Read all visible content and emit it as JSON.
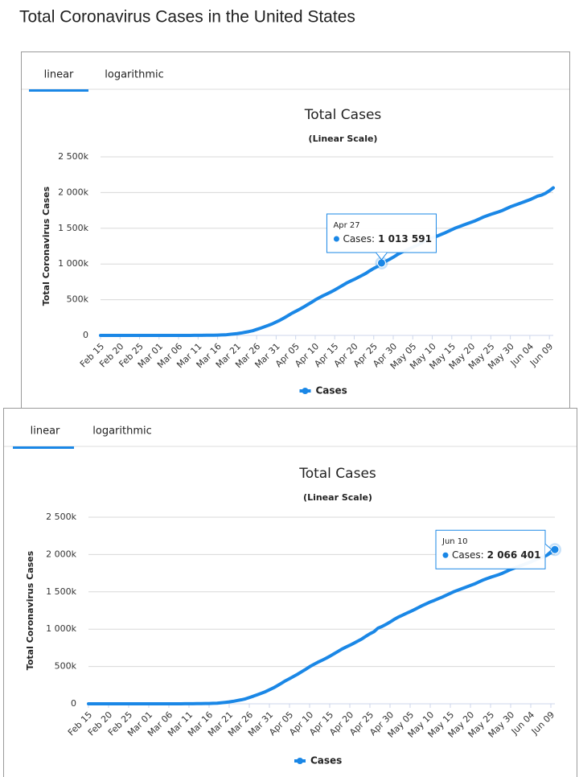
{
  "page_title": "Total Coronavirus Cases in the United States",
  "panels": [
    {
      "tabs": [
        "linear",
        "logarithmic"
      ]
    },
    {
      "tabs": [
        "linear",
        "logarithmic"
      ]
    }
  ],
  "chart_data": [
    {
      "type": "line",
      "title": "Total Cases",
      "subtitle": "(Linear Scale)",
      "y_label": "Total Coronavirus Cases",
      "categories": [
        "Feb 15",
        null,
        null,
        null,
        null,
        "Feb 20",
        null,
        null,
        null,
        null,
        "Feb 25",
        null,
        null,
        null,
        null,
        "Mar 01",
        null,
        null,
        null,
        null,
        "Mar 06",
        null,
        null,
        null,
        null,
        "Mar 11",
        null,
        null,
        null,
        null,
        "Mar 16",
        null,
        null,
        null,
        null,
        "Mar 21",
        null,
        null,
        null,
        null,
        "Mar 26",
        null,
        null,
        null,
        null,
        "Mar 31",
        null,
        null,
        null,
        null,
        "Apr 05",
        null,
        null,
        null,
        null,
        "Apr 10",
        null,
        null,
        null,
        null,
        "Apr 15",
        null,
        null,
        null,
        null,
        "Apr 20",
        null,
        null,
        null,
        null,
        "Apr 25",
        null,
        null,
        null,
        null,
        "Apr 30",
        null,
        null,
        null,
        null,
        "May 05",
        null,
        null,
        null,
        null,
        "May 10",
        null,
        null,
        null,
        null,
        "May 15",
        null,
        null,
        null,
        null,
        "May 20",
        null,
        null,
        null,
        null,
        "May 25",
        null,
        null,
        null,
        null,
        "May 30",
        null,
        null,
        null,
        null,
        "Jun 04",
        null,
        null,
        null,
        null,
        "Jun 09",
        null
      ],
      "series": [
        {
          "name": "Cases",
          "color": "#1a87e6",
          "values": [
            15,
            15,
            15,
            15,
            15,
            15,
            15,
            15,
            15,
            15,
            15,
            15,
            16,
            16,
            24,
            30,
            53,
            80,
            120,
            175,
            250,
            350,
            450,
            580,
            960,
            1300,
            1700,
            2200,
            2900,
            3500,
            4600,
            6400,
            7800,
            13700,
            19100,
            25500,
            33300,
            43800,
            53700,
            65700,
            83800,
            101700,
            121500,
            140900,
            161800,
            188200,
            213400,
            243500,
            275600,
            308800,
            337100,
            366600,
            396200,
            429000,
            461400,
            496500,
            526400,
            555300,
            580600,
            607700,
            636300,
            667800,
            699700,
            732200,
            759000,
            784300,
            811900,
            840300,
            869200,
            905400,
            938100,
            965800,
            1013591,
            1035800,
            1064200,
            1095000,
            1130000,
            1160000,
            1185000,
            1210000,
            1235000,
            1260000,
            1288000,
            1315000,
            1340000,
            1365000,
            1385000,
            1408000,
            1430000,
            1455000,
            1480000,
            1505000,
            1525000,
            1545000,
            1565000,
            1585000,
            1605000,
            1630000,
            1655000,
            1675000,
            1695000,
            1712000,
            1730000,
            1750000,
            1775000,
            1800000,
            1820000,
            1840000,
            1860000,
            1880000,
            1900000,
            1925000,
            1950000,
            1965000,
            1990000,
            2025000,
            2066401
          ]
        }
      ],
      "ylim": [
        0,
        2500000
      ],
      "yticks": [
        0,
        {
          "value": 500000,
          "label": "500k"
        },
        {
          "value": 1000000,
          "label": "1 000k"
        },
        {
          "value": 1500000,
          "label": "1 500k"
        },
        {
          "value": 2000000,
          "label": "2 000k"
        },
        {
          "value": 2500000,
          "label": "2 500k"
        }
      ],
      "grid": true,
      "legend": "bottom",
      "tooltip": {
        "title": "Apr 27",
        "series_label": "Cases:",
        "value": 1013591,
        "value_label": "1 013 591"
      }
    },
    {
      "type": "line",
      "title": "Total Cases",
      "subtitle": "(Linear Scale)",
      "y_label": "Total Coronavirus Cases",
      "categories": [
        "Feb 15",
        null,
        null,
        null,
        null,
        "Feb 20",
        null,
        null,
        null,
        null,
        "Feb 25",
        null,
        null,
        null,
        null,
        "Mar 01",
        null,
        null,
        null,
        null,
        "Mar 06",
        null,
        null,
        null,
        null,
        "Mar 11",
        null,
        null,
        null,
        null,
        "Mar 16",
        null,
        null,
        null,
        null,
        "Mar 21",
        null,
        null,
        null,
        null,
        "Mar 26",
        null,
        null,
        null,
        null,
        "Mar 31",
        null,
        null,
        null,
        null,
        "Apr 05",
        null,
        null,
        null,
        null,
        "Apr 10",
        null,
        null,
        null,
        null,
        "Apr 15",
        null,
        null,
        null,
        null,
        "Apr 20",
        null,
        null,
        null,
        null,
        "Apr 25",
        null,
        null,
        null,
        null,
        "Apr 30",
        null,
        null,
        null,
        null,
        "May 05",
        null,
        null,
        null,
        null,
        "May 10",
        null,
        null,
        null,
        null,
        "May 15",
        null,
        null,
        null,
        null,
        "May 20",
        null,
        null,
        null,
        null,
        "May 25",
        null,
        null,
        null,
        null,
        "May 30",
        null,
        null,
        null,
        null,
        "Jun 04",
        null,
        null,
        null,
        null,
        "Jun 09",
        null
      ],
      "series": [
        {
          "name": "Cases",
          "color": "#1a87e6",
          "values": [
            15,
            15,
            15,
            15,
            15,
            15,
            15,
            15,
            15,
            15,
            15,
            15,
            16,
            16,
            24,
            30,
            53,
            80,
            120,
            175,
            250,
            350,
            450,
            580,
            960,
            1300,
            1700,
            2200,
            2900,
            3500,
            4600,
            6400,
            7800,
            13700,
            19100,
            25500,
            33300,
            43800,
            53700,
            65700,
            83800,
            101700,
            121500,
            140900,
            161800,
            188200,
            213400,
            243500,
            275600,
            308800,
            337100,
            366600,
            396200,
            429000,
            461400,
            496500,
            526400,
            555300,
            580600,
            607700,
            636300,
            667800,
            699700,
            732200,
            759000,
            784300,
            811900,
            840300,
            869200,
            905400,
            938100,
            965800,
            1013591,
            1035800,
            1064200,
            1095000,
            1130000,
            1160000,
            1185000,
            1210000,
            1235000,
            1260000,
            1288000,
            1315000,
            1340000,
            1365000,
            1385000,
            1408000,
            1430000,
            1455000,
            1480000,
            1505000,
            1525000,
            1545000,
            1565000,
            1585000,
            1605000,
            1630000,
            1655000,
            1675000,
            1695000,
            1712000,
            1730000,
            1750000,
            1775000,
            1800000,
            1820000,
            1840000,
            1860000,
            1880000,
            1900000,
            1925000,
            1950000,
            1965000,
            1990000,
            2025000,
            2066401
          ]
        }
      ],
      "ylim": [
        0,
        2500000
      ],
      "yticks": [
        0,
        {
          "value": 500000,
          "label": "500k"
        },
        {
          "value": 1000000,
          "label": "1 000k"
        },
        {
          "value": 1500000,
          "label": "1 500k"
        },
        {
          "value": 2000000,
          "label": "2 000k"
        },
        {
          "value": 2500000,
          "label": "2 500k"
        }
      ],
      "grid": true,
      "legend": "bottom",
      "tooltip": {
        "title": "Jun 10",
        "series_label": "Cases:",
        "value": 2066401,
        "value_label": "2 066 401"
      }
    }
  ]
}
